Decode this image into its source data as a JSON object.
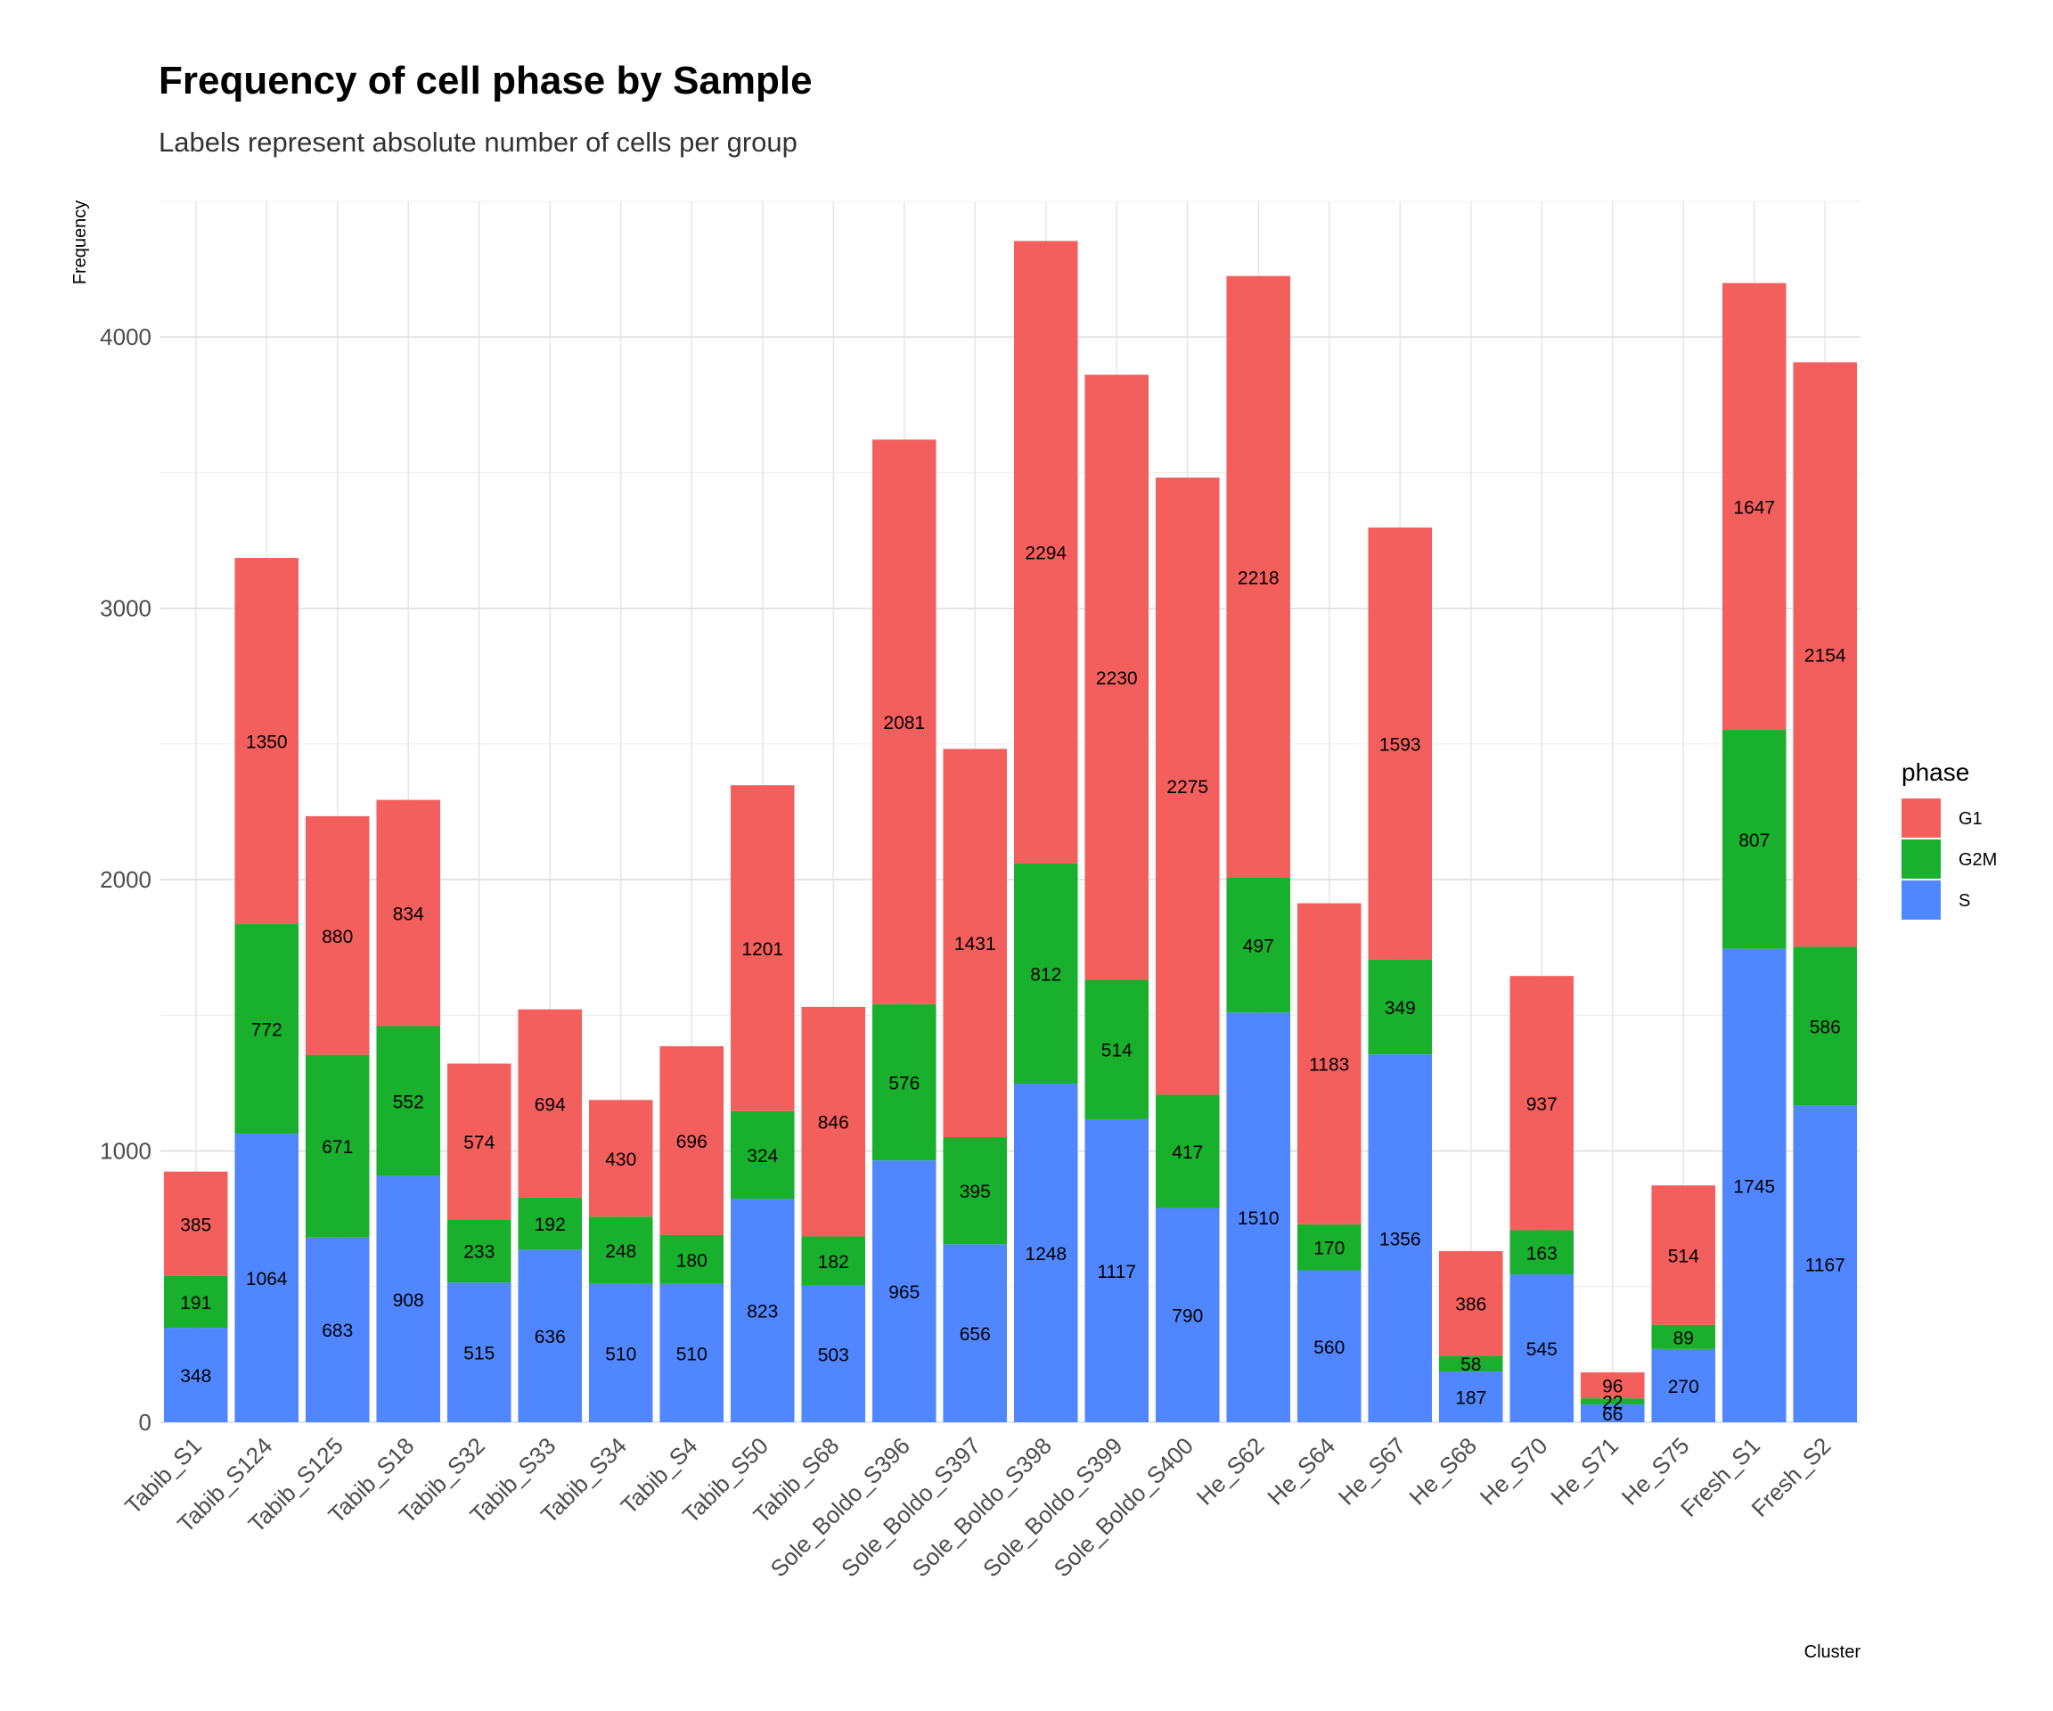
{
  "chart_data": {
    "type": "bar",
    "stacked": true,
    "title": "Frequency of cell phase by Sample",
    "subtitle": "Labels represent absolute number of cells per group",
    "xlabel": "Cluster",
    "ylabel": "Frequency",
    "ylim": [
      0,
      4500
    ],
    "yticks": [
      0,
      1000,
      2000,
      3000,
      4000
    ],
    "grid": true,
    "legend": {
      "title": "phase",
      "position": "right"
    },
    "categories": [
      "Tabib_S1",
      "Tabib_S124",
      "Tabib_S125",
      "Tabib_S18",
      "Tabib_S32",
      "Tabib_S33",
      "Tabib_S34",
      "Tabib_S4",
      "Tabib_S50",
      "Tabib_S68",
      "Sole_Boldo_S396",
      "Sole_Boldo_S397",
      "Sole_Boldo_S398",
      "Sole_Boldo_S399",
      "Sole_Boldo_S400",
      "He_S62",
      "He_S64",
      "He_S67",
      "He_S68",
      "He_S70",
      "He_S71",
      "He_S75",
      "Fresh_S1",
      "Fresh_S2"
    ],
    "series": [
      {
        "name": "S",
        "color": "#5086FF",
        "values": [
          348,
          1064,
          683,
          908,
          515,
          636,
          510,
          510,
          823,
          503,
          965,
          656,
          1248,
          1117,
          790,
          1510,
          560,
          1356,
          187,
          545,
          66,
          270,
          1745,
          1167
        ]
      },
      {
        "name": "G2M",
        "color": "#19B02D",
        "values": [
          191,
          772,
          671,
          552,
          233,
          192,
          248,
          180,
          324,
          182,
          576,
          395,
          812,
          514,
          417,
          497,
          170,
          349,
          58,
          163,
          22,
          89,
          807,
          586
        ]
      },
      {
        "name": "G1",
        "color": "#F25F5C",
        "values": [
          385,
          1350,
          880,
          834,
          574,
          694,
          430,
          696,
          1201,
          846,
          2081,
          1431,
          2294,
          2230,
          2275,
          2218,
          1183,
          1593,
          386,
          937,
          96,
          514,
          1647,
          2154
        ]
      }
    ]
  }
}
